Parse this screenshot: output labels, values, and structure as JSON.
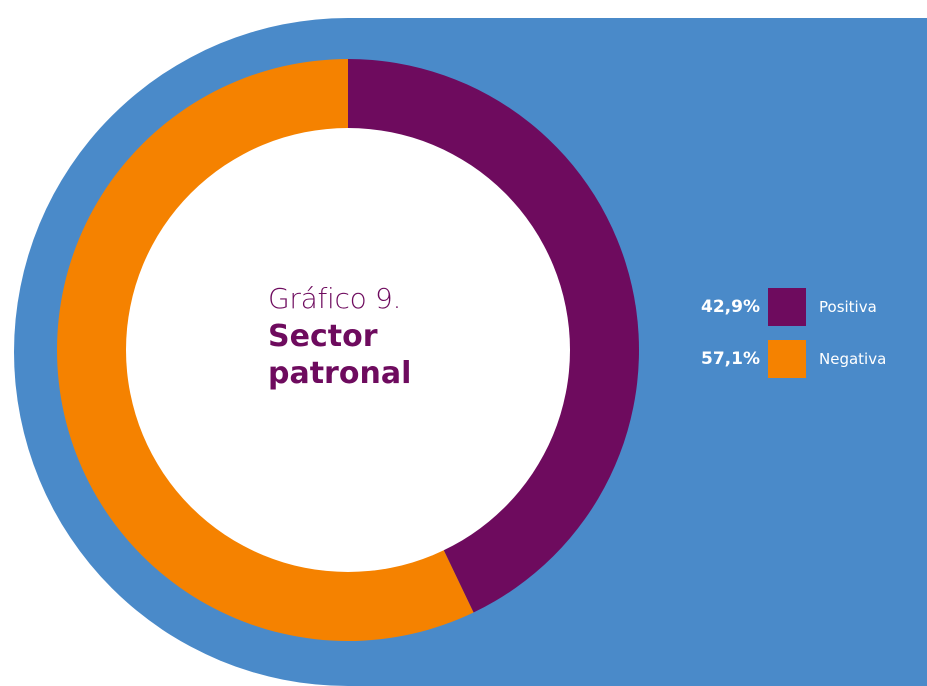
{
  "title": {
    "line1": "Gráfico 9.",
    "line2": "Sector",
    "line3": "patronal"
  },
  "colors": {
    "background": "#4a8ac9",
    "positiva": "#6e0b5e",
    "negativa": "#f58200",
    "title": "#6e0b5e"
  },
  "chart_data": {
    "type": "pie",
    "variant": "donut",
    "categories": [
      "Positiva",
      "Negativa"
    ],
    "values": [
      42.9,
      57.1
    ],
    "value_labels": [
      "42,9%",
      "57,1%"
    ],
    "colors": [
      "#6e0b5e",
      "#f58200"
    ],
    "legend_position": "right"
  }
}
